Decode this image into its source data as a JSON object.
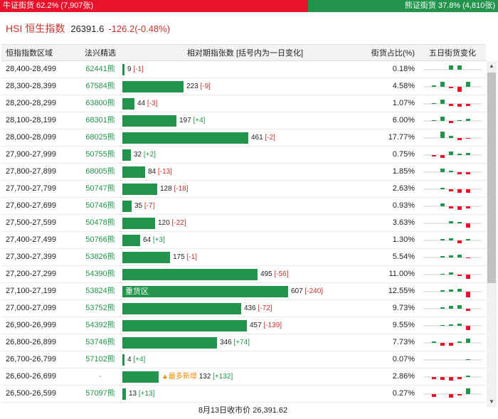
{
  "ratio": {
    "bull_label": "牛证街货 62.2% (7,907张)",
    "bull_fraction": 0.622,
    "bear_label": "熊证街货 37.8% (4,810张)",
    "bull_color": "#e8132b",
    "bear_color": "#22944b"
  },
  "index": {
    "code": "HSI",
    "name": "恒生指数",
    "price": "26391.6",
    "change": "-126.2(-0.48%)"
  },
  "headers": {
    "range": "恒指指数区域",
    "ticker": "法兴精选",
    "change": "相对期指张数 [括号内为一日变化]",
    "share": "街货占比(%)",
    "five_day": "五日街货变化"
  },
  "max_contracts": 607,
  "rows": [
    {
      "range": "28,400-28,499",
      "ticker": "62441熊",
      "contracts": 9,
      "count": "9",
      "chg": "[-1]",
      "chg_sign": "neg",
      "share": "0.18%",
      "spark": [
        0,
        0,
        0.5,
        0.55,
        0
      ]
    },
    {
      "range": "28,300-28,399",
      "ticker": "67584熊",
      "contracts": 223,
      "count": "223",
      "chg": "[-9]",
      "chg_sign": "neg",
      "share": "4.58%",
      "spark": [
        0.2,
        0.6,
        -0.2,
        -0.6,
        0.6
      ]
    },
    {
      "range": "28,200-28,299",
      "ticker": "63800熊",
      "contracts": 44,
      "count": "44",
      "chg": "[-3]",
      "chg_sign": "neg",
      "share": "1.07%",
      "spark": [
        0.1,
        0.55,
        -0.3,
        -0.4,
        -0.3
      ]
    },
    {
      "range": "28,100-28,199",
      "ticker": "68301熊",
      "contracts": 197,
      "count": "197",
      "chg": "[+4]",
      "chg_sign": "pos",
      "share": "6.00%",
      "spark": [
        0.1,
        0.55,
        -0.3,
        0.1,
        0.25
      ]
    },
    {
      "range": "28,000-28,099",
      "ticker": "68025熊",
      "contracts": 461,
      "count": "461",
      "chg": "[-2]",
      "chg_sign": "neg",
      "share": "17.77%",
      "spark": [
        0,
        0.85,
        0.3,
        -0.3,
        -0.1
      ]
    },
    {
      "range": "27,900-27,999",
      "ticker": "50755熊",
      "contracts": 32,
      "count": "32",
      "chg": "[+2]",
      "chg_sign": "pos",
      "share": "0.75%",
      "spark": [
        -0.2,
        -0.4,
        0.45,
        0.15,
        0.25
      ]
    },
    {
      "range": "27,800-27,899",
      "ticker": "68005熊",
      "contracts": 84,
      "count": "84",
      "chg": "[-13]",
      "chg_sign": "neg",
      "share": "1.85%",
      "spark": [
        0,
        0.45,
        0.2,
        -0.3,
        -0.25
      ]
    },
    {
      "range": "27,700-27,799",
      "ticker": "50747熊",
      "contracts": 128,
      "count": "128",
      "chg": "[-18]",
      "chg_sign": "neg",
      "share": "2.63%",
      "spark": [
        0,
        0.2,
        -0.25,
        -0.45,
        -0.45
      ]
    },
    {
      "range": "27,600-27,699",
      "ticker": "50746熊",
      "contracts": 35,
      "count": "35",
      "chg": "[-7]",
      "chg_sign": "neg",
      "share": "0.93%",
      "spark": [
        0,
        0.35,
        -0.3,
        -0.45,
        -0.3
      ]
    },
    {
      "range": "27,500-27,599",
      "ticker": "50478熊",
      "contracts": 120,
      "count": "120",
      "chg": "[-22]",
      "chg_sign": "neg",
      "share": "3.63%",
      "spark": [
        0,
        0,
        0.25,
        0.2,
        -0.55
      ]
    },
    {
      "range": "27,400-27,499",
      "ticker": "50766熊",
      "contracts": 64,
      "count": "64",
      "chg": "[+3]",
      "chg_sign": "pos",
      "share": "1.30%",
      "spark": [
        0,
        0.15,
        0.25,
        -0.35,
        0.2
      ]
    },
    {
      "range": "27,300-27,399",
      "ticker": "53826熊",
      "contracts": 175,
      "count": "175",
      "chg": "[-1]",
      "chg_sign": "neg",
      "share": "5.54%",
      "spark": [
        0,
        0.2,
        0.3,
        0.4,
        -0.1
      ]
    },
    {
      "range": "27,200-27,299",
      "ticker": "54390熊",
      "contracts": 495,
      "count": "495",
      "chg": "[-56]",
      "chg_sign": "neg",
      "share": "11.00%",
      "spark": [
        0,
        0.1,
        0.25,
        -0.2,
        -0.5
      ]
    },
    {
      "range": "27,100-27,199",
      "ticker": "53824熊",
      "contracts": 607,
      "count": "607",
      "chg": "[-240]",
      "chg_sign": "neg",
      "share": "12.55%",
      "spark": [
        0,
        0.2,
        0.25,
        0.35,
        -0.7
      ],
      "label": "重货区"
    },
    {
      "range": "27,000-27,099",
      "ticker": "53752熊",
      "contracts": 436,
      "count": "436",
      "chg": "[-72]",
      "chg_sign": "neg",
      "share": "9.73%",
      "spark": [
        0,
        0.2,
        0.35,
        0.45,
        -0.3
      ]
    },
    {
      "range": "26,900-26,999",
      "ticker": "54392熊",
      "contracts": 457,
      "count": "457",
      "chg": "[-139]",
      "chg_sign": "neg",
      "share": "9.55%",
      "spark": [
        0,
        0.1,
        0.2,
        0.3,
        -0.55
      ]
    },
    {
      "range": "26,800-26,899",
      "ticker": "53746熊",
      "contracts": 346,
      "count": "346",
      "chg": "[+74]",
      "chg_sign": "pos",
      "share": "7.73%",
      "spark": [
        0.2,
        -0.35,
        -0.4,
        0.2,
        0.55
      ]
    },
    {
      "range": "26,700-26,799",
      "ticker": "57102熊",
      "contracts": 4,
      "count": "4",
      "chg": "[+4]",
      "chg_sign": "pos",
      "share": "0.07%",
      "spark": [
        0,
        0,
        0,
        0,
        0.1
      ]
    },
    {
      "range": "26,600-26,699",
      "ticker": "-",
      "contracts": 132,
      "count": "132",
      "chg": "[+132]",
      "chg_sign": "pos",
      "share": "2.86%",
      "spark": [
        -0.3,
        -0.35,
        -0.45,
        -0.3,
        0.2
      ],
      "tag": "▲最多新增"
    },
    {
      "range": "26,500-26,599",
      "ticker": "57097熊",
      "contracts": 13,
      "count": "13",
      "chg": "[+13]",
      "chg_sign": "pos",
      "share": "0.27%",
      "spark": [
        -0.4,
        0,
        -0.45,
        -0.2,
        0.7
      ]
    }
  ],
  "footer": "8月13日收市价 26,391.62",
  "colors": {
    "up": "#22944b",
    "down": "#e8132b"
  }
}
